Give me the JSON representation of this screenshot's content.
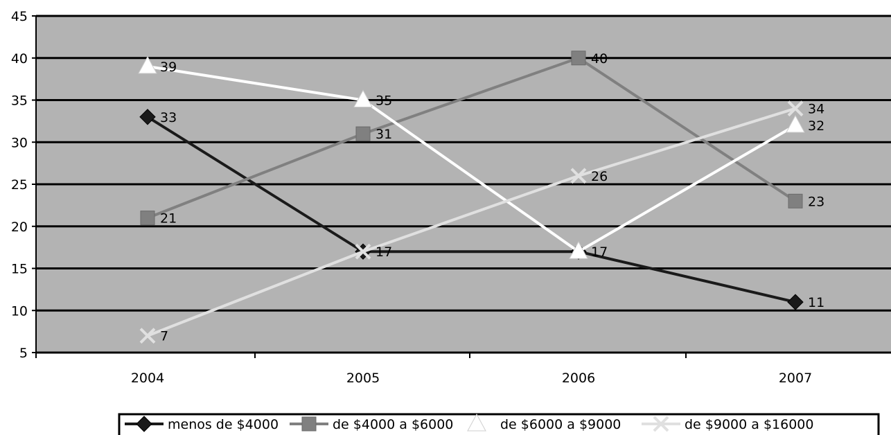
{
  "chart_data": {
    "type": "line",
    "title": "",
    "xlabel": "",
    "ylabel": "",
    "categories": [
      "2004",
      "2005",
      "2006",
      "2007"
    ],
    "ylim": [
      5,
      45
    ],
    "yticks": [
      5,
      10,
      15,
      20,
      25,
      30,
      35,
      40,
      45
    ],
    "grid": true,
    "legend_position": "bottom",
    "plot_background": "#b3b3b3",
    "gridline_color": "#000000",
    "series": [
      {
        "name": "menos de $4000",
        "values": [
          33,
          17,
          17,
          11
        ],
        "labels": [
          "33",
          "17",
          "",
          "11"
        ],
        "color": "#1a1a1a",
        "marker": "diamond"
      },
      {
        "name": "de $4000 a $6000",
        "values": [
          21,
          31,
          40,
          23
        ],
        "labels": [
          "21",
          "31",
          "40",
          "23"
        ],
        "color": "#808080",
        "marker": "square"
      },
      {
        "name": "de $6000 a $9000",
        "values": [
          39,
          35,
          17,
          32
        ],
        "labels": [
          "39",
          "35",
          "17",
          "32"
        ],
        "color": "#ffffff",
        "marker": "triangle"
      },
      {
        "name": "de $9000 a $16000",
        "values": [
          7,
          17,
          26,
          34
        ],
        "labels": [
          "7",
          "",
          "26",
          "34"
        ],
        "color": "#e0e0e0",
        "marker": "x"
      }
    ]
  }
}
